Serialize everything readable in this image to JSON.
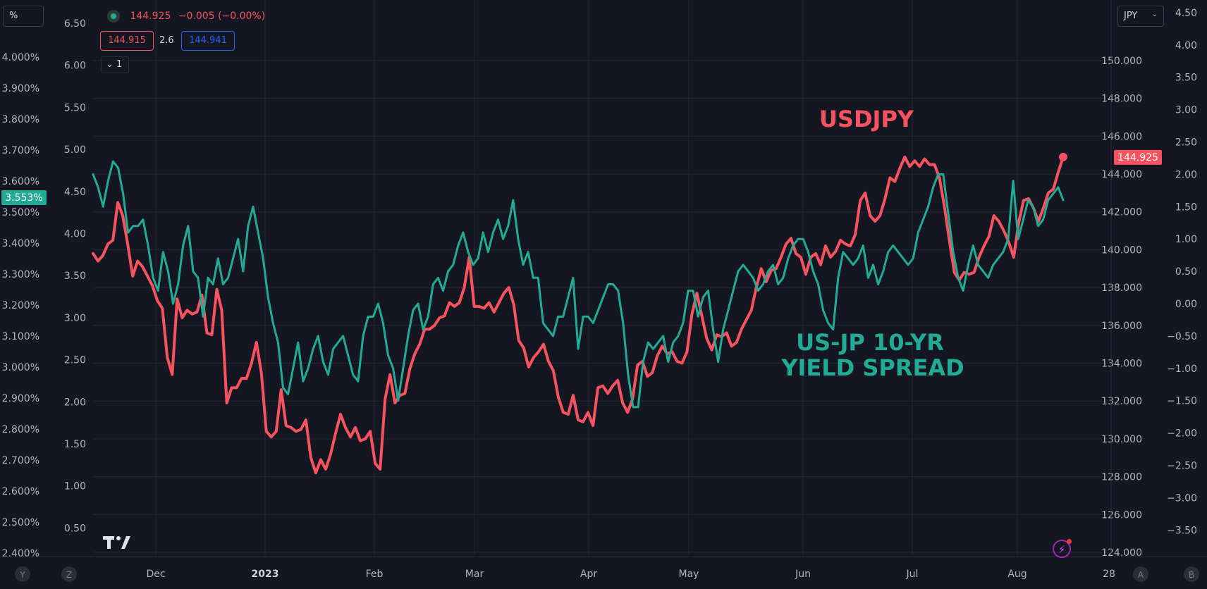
{
  "controls": {
    "left_scale_mode": "%",
    "right_scale_currency": "JPY",
    "right_scale_chevron": "⌄",
    "legend_price": "144.925",
    "legend_change": "−0.005 (−0.00%)",
    "bid": "144.915",
    "spread": "2.6",
    "ask": "144.941",
    "collapse_label": "⌄ 1",
    "bottom_left_buttons": [
      "Y",
      "Z"
    ],
    "bottom_right_buttons": [
      "A",
      "B"
    ]
  },
  "colors": {
    "background": "#141722",
    "grid": "#232733",
    "usdjpy": "#f7525f",
    "spread": "#22ab94",
    "text": "#b2b5be",
    "usdjpy_label_bg": "#f7525f",
    "spread_label_bg": "#22ab94"
  },
  "chart_data": {
    "type": "line",
    "x_labels": [
      "Dec",
      "2023",
      "Feb",
      "Mar",
      "Apr",
      "May",
      "Jun",
      "Jul",
      "Aug",
      "28"
    ],
    "axes": {
      "left_outer": {
        "ticks": [
          "4.000%",
          "3.900%",
          "3.800%",
          "3.700%",
          "3.600%",
          "3.500%",
          "3.400%",
          "3.300%",
          "3.200%",
          "3.100%",
          "3.000%",
          "2.900%",
          "2.800%",
          "2.700%",
          "2.600%",
          "2.500%",
          "2.400%"
        ],
        "current": "3.553%"
      },
      "left_inner": {
        "ticks": [
          "6.50",
          "6.00",
          "5.50",
          "5.00",
          "4.50",
          "4.00",
          "3.50",
          "3.00",
          "2.50",
          "2.00",
          "1.50",
          "1.00",
          "0.50"
        ]
      },
      "right_inner": {
        "ticks": [
          "150.000",
          "148.000",
          "146.000",
          "144.000",
          "142.000",
          "140.000",
          "138.000",
          "136.000",
          "134.000",
          "132.000",
          "130.000",
          "128.000",
          "126.000",
          "124.000"
        ],
        "current": "144.925",
        "ylim": [
          124,
          151
        ]
      },
      "right_outer": {
        "ticks": [
          "4.50",
          "4.00",
          "3.50",
          "3.00",
          "2.50",
          "2.00",
          "1.50",
          "1.00",
          "0.50",
          "0.00",
          "−0.50",
          "−1.00",
          "−1.50",
          "−2.00",
          "−2.50",
          "−3.00",
          "−3.50"
        ],
        "ylim": [
          -3.8,
          4.7
        ]
      }
    },
    "annotations": [
      {
        "text": "USDJPY",
        "series": "USDJPY"
      },
      {
        "text": "US-JP 10-YR",
        "series": "spread"
      },
      {
        "text": "YIELD SPREAD",
        "series": "spread"
      }
    ],
    "series": [
      {
        "name": "USDJPY",
        "axis": "right_inner",
        "values": [
          139.8,
          139.4,
          139.7,
          140.3,
          140.5,
          142.5,
          141.8,
          140.3,
          138.6,
          139.4,
          139.1,
          138.6,
          138.1,
          137.3,
          136.9,
          134.3,
          133.4,
          137.4,
          136.4,
          136.8,
          136.6,
          136.7,
          137.6,
          135.6,
          135.5,
          137.9,
          136.8,
          131.9,
          132.7,
          132.7,
          133.2,
          133.2,
          134.0,
          135.1,
          133.5,
          130.4,
          130.1,
          130.4,
          132.6,
          130.7,
          130.6,
          130.4,
          130.5,
          131.0,
          129.0,
          128.2,
          128.9,
          128.4,
          129.2,
          130.3,
          131.3,
          130.6,
          130.1,
          130.6,
          129.9,
          130.0,
          130.4,
          128.7,
          128.4,
          132.1,
          133.4,
          131.9,
          132.3,
          132.4,
          133.7,
          134.5,
          135.0,
          135.8,
          135.8,
          136.0,
          136.4,
          136.5,
          137.2,
          137.0,
          137.2,
          138.0,
          139.6,
          137.0,
          137.0,
          136.9,
          137.2,
          136.7,
          137.2,
          137.7,
          138.0,
          137.1,
          135.2,
          134.8,
          133.8,
          134.3,
          134.6,
          135.0,
          134.1,
          133.6,
          132.2,
          131.4,
          131.3,
          132.3,
          131.0,
          130.9,
          131.4,
          130.7,
          132.7,
          132.8,
          132.4,
          132.8,
          133.1,
          131.9,
          131.4,
          132.1,
          133.9,
          134.1,
          133.3,
          133.5,
          134.4,
          134.9,
          134.5,
          134.6,
          134.1,
          134.0,
          134.6,
          136.6,
          137.7,
          136.5,
          135.3,
          134.7,
          135.5,
          135.4,
          135.6,
          134.9,
          135.1,
          135.8,
          136.3,
          136.8,
          138.0,
          139.0,
          138.3,
          138.9,
          139.0,
          139.6,
          140.3,
          140.6,
          139.8,
          139.6,
          138.7,
          139.6,
          139.8,
          139.2,
          140.2,
          139.6,
          139.9,
          140.5,
          140.3,
          140.2,
          140.8,
          142.6,
          143.0,
          141.8,
          141.5,
          141.8,
          142.7,
          143.8,
          143.6,
          144.3,
          144.9,
          144.4,
          144.7,
          144.4,
          144.8,
          144.5,
          144.5,
          143.8,
          142.3,
          140.5,
          138.8,
          138.4,
          138.8,
          138.7,
          138.8,
          139.6,
          140.2,
          140.7,
          141.8,
          141.5,
          141.0,
          140.4,
          139.6,
          141.4,
          142.6,
          142.7,
          142.2,
          141.5,
          142.2,
          143.0,
          143.2,
          144.1,
          144.9
        ]
      },
      {
        "name": "US-JP 10-YR YIELD SPREAD",
        "axis": "right_outer",
        "values": [
          2.0,
          1.8,
          1.5,
          1.9,
          2.2,
          2.1,
          1.7,
          1.1,
          1.2,
          1.2,
          1.3,
          0.9,
          0.4,
          0.2,
          0.8,
          0.5,
          0.0,
          0.3,
          0.9,
          1.2,
          0.5,
          0.4,
          -0.2,
          0.4,
          0.3,
          0.7,
          0.3,
          0.4,
          0.7,
          1.0,
          0.5,
          1.2,
          1.5,
          1.1,
          0.7,
          0.1,
          -0.3,
          -0.6,
          -1.3,
          -1.4,
          -1.0,
          -0.6,
          -1.2,
          -1.0,
          -0.7,
          -0.5,
          -0.9,
          -1.1,
          -0.7,
          -0.6,
          -0.5,
          -0.8,
          -1.1,
          -1.2,
          -0.5,
          -0.2,
          -0.2,
          0.0,
          -0.3,
          -0.8,
          -1.0,
          -1.5,
          -1.0,
          -0.5,
          -0.1,
          0.0,
          -0.4,
          -0.2,
          0.3,
          0.4,
          0.2,
          0.5,
          0.6,
          0.9,
          1.1,
          0.8,
          0.6,
          0.7,
          1.1,
          0.8,
          1.1,
          1.3,
          1.0,
          1.2,
          1.6,
          1.0,
          0.6,
          0.8,
          0.4,
          0.4,
          -0.3,
          -0.4,
          -0.5,
          -0.2,
          -0.2,
          0.1,
          0.4,
          -0.7,
          -0.2,
          -0.2,
          -0.3,
          -0.1,
          0.1,
          0.3,
          0.3,
          0.2,
          -0.3,
          -1.1,
          -1.6,
          -1.6,
          -0.9,
          -0.6,
          -0.7,
          -0.6,
          -0.5,
          -0.9,
          -0.6,
          -0.5,
          -0.3,
          0.2,
          0.2,
          -0.2,
          0.1,
          0.2,
          -0.4,
          -0.9,
          -0.4,
          -0.1,
          0.2,
          0.5,
          0.6,
          0.5,
          0.4,
          0.2,
          0.3,
          0.5,
          0.6,
          0.3,
          0.4,
          0.7,
          0.9,
          1.0,
          1.0,
          0.8,
          0.5,
          0.3,
          -0.1,
          -0.3,
          -0.4,
          0.4,
          0.8,
          0.7,
          0.6,
          0.7,
          0.9,
          0.4,
          0.6,
          0.3,
          0.5,
          0.8,
          0.9,
          0.8,
          0.7,
          0.6,
          0.7,
          1.1,
          1.3,
          1.5,
          1.8,
          2.0,
          2.0,
          1.4,
          0.8,
          0.4,
          0.2,
          0.6,
          0.9,
          0.6,
          0.5,
          0.4,
          0.6,
          0.7,
          0.8,
          1.0,
          1.9,
          1.0,
          1.3,
          1.6,
          1.5,
          1.2,
          1.3,
          1.6,
          1.7,
          1.8,
          1.6
        ]
      }
    ]
  }
}
